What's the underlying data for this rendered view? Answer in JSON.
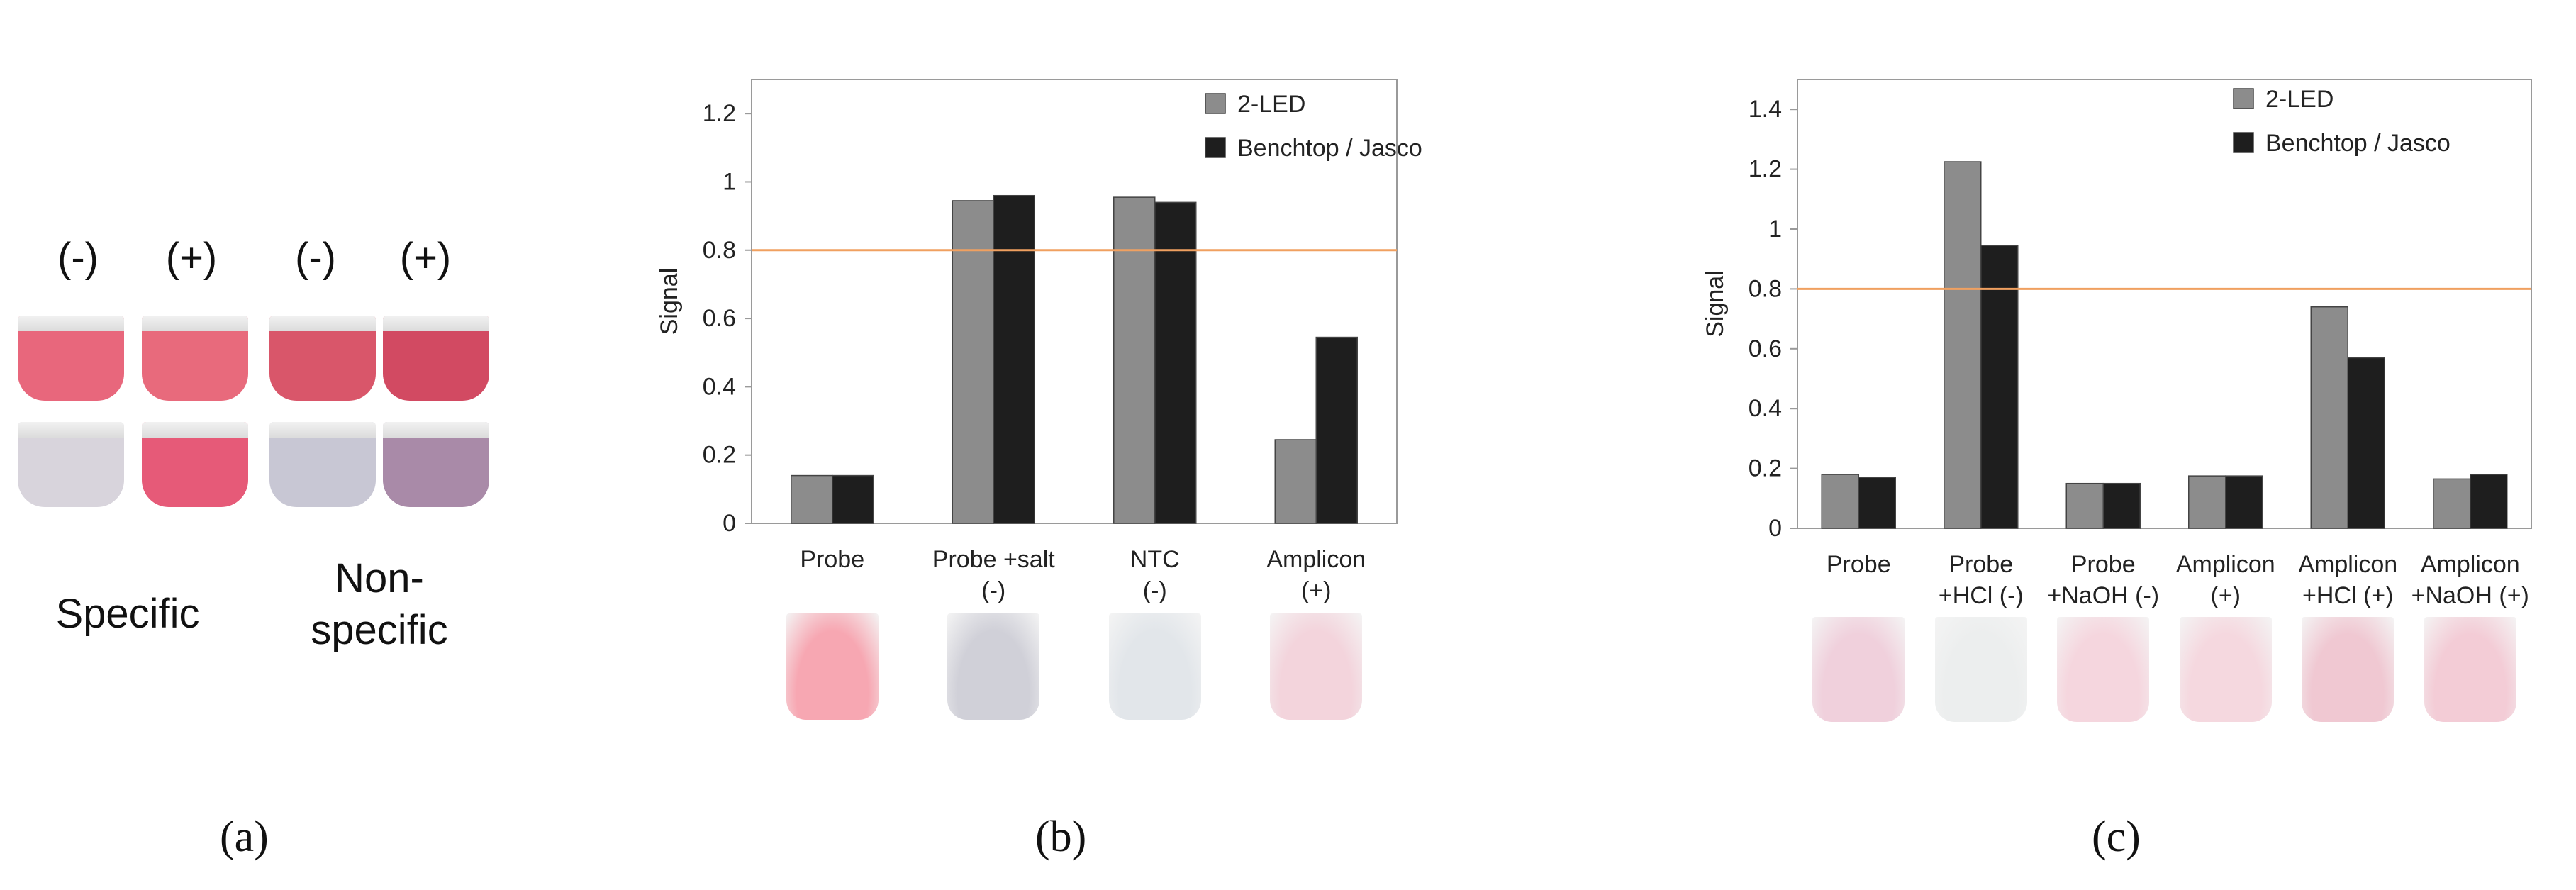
{
  "panel_a": {
    "column_labels": [
      "(-)",
      "(+)",
      "(-)",
      "(+)"
    ],
    "group_labels": [
      "Specific",
      "Non-\nspecific"
    ],
    "panel_label": "(a)",
    "tube_colors": {
      "top": [
        "#e8677c",
        "#e86a7c",
        "#d9566a",
        "#d24a62"
      ],
      "bottom": [
        "#d8d4dc",
        "#e65a78",
        "#c8c7d4",
        "#a98aa8"
      ]
    }
  },
  "chart_data": [
    {
      "id": "panel_b",
      "type": "bar",
      "categories": [
        "Probe",
        "Probe +salt\n(-)",
        "NTC\n(-)",
        "Amplicon\n(+)"
      ],
      "series": [
        {
          "name": "2-LED",
          "values": [
            0.14,
            0.945,
            0.955,
            0.245
          ],
          "color": "#8c8c8c"
        },
        {
          "name": "Benchtop / Jasco",
          "values": [
            0.14,
            0.96,
            0.94,
            0.545
          ],
          "color": "#1e1e1e"
        }
      ],
      "ylabel": "Signal",
      "ylim": [
        0,
        1.3
      ],
      "yticks": [
        0,
        0.2,
        0.4,
        0.6,
        0.8,
        1,
        1.2
      ],
      "ytick_labels": [
        "0",
        "0.2",
        "0.4",
        "0.6",
        "0.8",
        "1",
        "1.2"
      ],
      "threshold": {
        "value": 0.8,
        "color": "#f0a060"
      },
      "legend_position": "top-right",
      "panel_label": "(b)",
      "cuvette_colors": [
        "#f7a7b2",
        "#d0d0d8",
        "#e2e6ea",
        "#f3d4dc"
      ]
    },
    {
      "id": "panel_c",
      "type": "bar",
      "categories": [
        "Probe",
        "Probe\n+HCl (-)",
        "Probe\n+NaOH (-)",
        "Amplicon\n(+)",
        "Amplicon\n+HCl (+)",
        "Amplicon\n+NaOH (+)"
      ],
      "series": [
        {
          "name": "2-LED",
          "values": [
            0.18,
            1.225,
            0.15,
            0.175,
            0.74,
            0.165
          ],
          "color": "#8c8c8c"
        },
        {
          "name": "Benchtop / Jasco",
          "values": [
            0.17,
            0.945,
            0.15,
            0.175,
            0.57,
            0.18
          ],
          "color": "#1e1e1e"
        }
      ],
      "ylabel": "Signal",
      "ylim": [
        0,
        1.5
      ],
      "yticks": [
        0,
        0.2,
        0.4,
        0.6,
        0.8,
        1,
        1.2,
        1.4
      ],
      "ytick_labels": [
        "0",
        "0.2",
        "0.4",
        "0.6",
        "0.8",
        "1",
        "1.2",
        "1.4"
      ],
      "threshold": {
        "value": 0.8,
        "color": "#f0a060"
      },
      "legend_position": "top-right",
      "panel_label": "(c)",
      "cuvette_colors": [
        "#f0d0dc",
        "#eceeee",
        "#f5d6de",
        "#f5d8df",
        "#f0c8d2",
        "#f3ccd6"
      ]
    }
  ]
}
